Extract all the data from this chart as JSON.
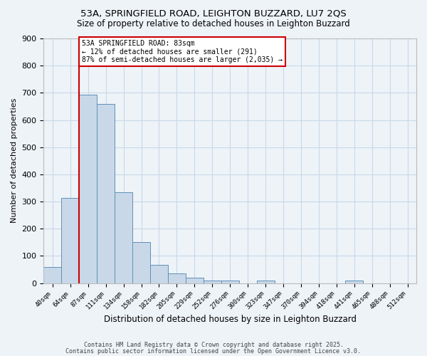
{
  "title": "53A, SPRINGFIELD ROAD, LEIGHTON BUZZARD, LU7 2QS",
  "subtitle": "Size of property relative to detached houses in Leighton Buzzard",
  "xlabel": "Distribution of detached houses by size in Leighton Buzzard",
  "ylabel": "Number of detached properties",
  "bar_labels": [
    "40sqm",
    "64sqm",
    "87sqm",
    "111sqm",
    "134sqm",
    "158sqm",
    "182sqm",
    "205sqm",
    "229sqm",
    "252sqm",
    "276sqm",
    "300sqm",
    "323sqm",
    "347sqm",
    "370sqm",
    "394sqm",
    "418sqm",
    "441sqm",
    "465sqm",
    "488sqm",
    "512sqm"
  ],
  "bar_values": [
    60,
    313,
    693,
    658,
    335,
    150,
    68,
    35,
    20,
    10,
    10,
    0,
    10,
    0,
    0,
    0,
    0,
    10,
    0,
    0,
    0
  ],
  "bar_color": "#c8d8e8",
  "bar_edgecolor": "#6090b8",
  "grid_color": "#c8d8e8",
  "background_color": "#eef3f8",
  "vline_x_index": 2,
  "vline_color": "#cc0000",
  "annotation_text": "53A SPRINGFIELD ROAD: 83sqm\n← 12% of detached houses are smaller (291)\n87% of semi-detached houses are larger (2,035) →",
  "annotation_box_color": "#ffffff",
  "annotation_box_edgecolor": "#cc0000",
  "footer_line1": "Contains HM Land Registry data © Crown copyright and database right 2025.",
  "footer_line2": "Contains public sector information licensed under the Open Government Licence v3.0.",
  "ylim": [
    0,
    900
  ],
  "yticks": [
    0,
    100,
    200,
    300,
    400,
    500,
    600,
    700,
    800,
    900
  ]
}
